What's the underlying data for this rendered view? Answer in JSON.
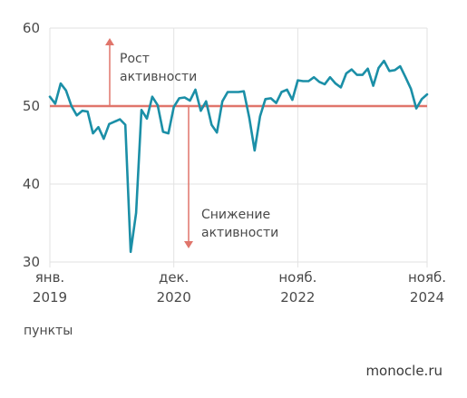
{
  "chart_data": {
    "type": "line",
    "ylim": [
      30,
      60
    ],
    "y_ticks": [
      "30",
      "40",
      "50",
      "60"
    ],
    "x_ticks": [
      {
        "month": "янв.",
        "year": "2019",
        "x": 0
      },
      {
        "month": "дек.",
        "year": "2020",
        "x": 23
      },
      {
        "month": "нояб.",
        "year": "2022",
        "x": 46
      },
      {
        "month": "нояб.",
        "year": "2024",
        "x": 70
      }
    ],
    "xlim": [
      0,
      70
    ],
    "threshold": 50,
    "grid": true,
    "annotations": {
      "up_line1": "Рост",
      "up_line2": "активности",
      "down_line1": "Снижение",
      "down_line2": "активности"
    },
    "colors": {
      "line": "#1b8fa7",
      "threshold": "#e0756b",
      "grid": "#e2e2e2"
    },
    "series": [
      {
        "values": [
          51.2,
          50.3,
          52.9,
          52.0,
          50.0,
          48.8,
          49.4,
          49.3,
          46.5,
          47.3,
          45.8,
          47.7,
          48.0,
          48.3,
          47.6,
          31.3,
          36.3,
          49.5,
          48.4,
          51.2,
          50.1,
          46.7,
          46.5,
          49.9,
          51.0,
          51.1,
          50.7,
          52.1,
          49.4,
          50.6,
          47.6,
          46.6,
          50.6,
          51.8,
          51.8,
          51.8,
          51.9,
          48.5,
          44.3,
          48.7,
          50.9,
          51.0,
          50.4,
          51.8,
          52.1,
          50.8,
          53.3,
          53.2,
          53.2,
          53.7,
          53.1,
          52.8,
          53.7,
          52.9,
          52.4,
          54.2,
          54.7,
          54.0,
          54.0,
          54.8,
          52.6,
          54.9,
          55.8,
          54.5,
          54.6,
          55.1,
          53.7,
          52.2,
          49.7,
          50.9,
          51.5
        ]
      }
    ]
  },
  "units_label": "пункты",
  "source": "monocle.ru"
}
